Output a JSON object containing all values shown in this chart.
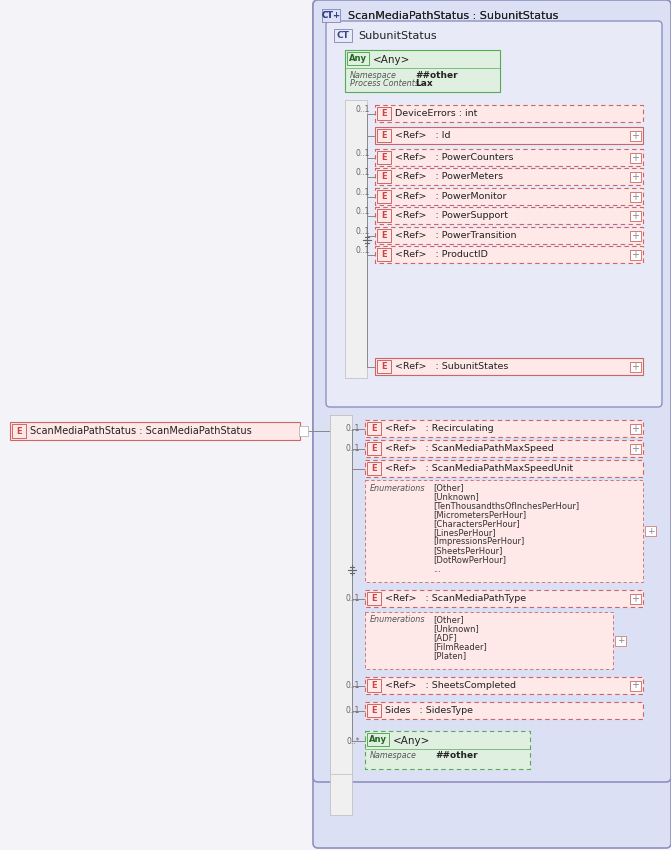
{
  "title": "ScanMediaPathStatus : SubunitStatus",
  "subunit_title": "SubunitStatus",
  "any_label": "<Any>",
  "any_ns": "##other",
  "any_process": "Lax",
  "main_element_label": "ScanMediaPathStatus : ScanMediaPathStatus",
  "outer_bg": "#dce0f5",
  "inner_bg": "#e8eaf8",
  "element_fill": "#ffe8e8",
  "element_border": "#cc6666",
  "any_fill": "#e0f0e0",
  "any_border": "#66aa66",
  "elements_inner": [
    {
      "label": "DeviceErrors : int",
      "has_plus": false,
      "occ": "0..1",
      "dashed": true
    },
    {
      "label": "<Ref>   : Id",
      "has_plus": true,
      "occ": "",
      "dashed": false
    },
    {
      "label": "<Ref>   : PowerCounters",
      "has_plus": true,
      "occ": "0..1",
      "dashed": true
    },
    {
      "label": "<Ref>   : PowerMeters",
      "has_plus": true,
      "occ": "0..1",
      "dashed": true
    },
    {
      "label": "<Ref>   : PowerMonitor",
      "has_plus": true,
      "occ": "0..1",
      "dashed": true
    },
    {
      "label": "<Ref>   : PowerSupport",
      "has_plus": true,
      "occ": "0..1",
      "dashed": true
    },
    {
      "label": "<Ref>   : PowerTransition",
      "has_plus": true,
      "occ": "0..1",
      "dashed": true
    },
    {
      "label": "<Ref>   : ProductID",
      "has_plus": true,
      "occ": "0..1",
      "dashed": true
    },
    {
      "label": "<Ref>   : SubunitStates",
      "has_plus": true,
      "occ": "",
      "dashed": false
    }
  ],
  "elements_outer": [
    {
      "label": "<Ref>   : Recirculating",
      "has_plus": true,
      "occ": "0..1",
      "dashed": true,
      "enums": null
    },
    {
      "label": "<Ref>   : ScanMediaPathMaxSpeed",
      "has_plus": true,
      "occ": "0..1",
      "dashed": true,
      "enums": null
    },
    {
      "label": "<Ref>   : ScanMediaPathMaxSpeedUnit",
      "has_plus": false,
      "occ": "",
      "dashed": true,
      "enums": [
        "[Other]",
        "[Unknown]",
        "[TenThousandthsOfInchesPerHour]",
        "[MicrometersPerHour]",
        "[CharactersPerHour]",
        "[LinesPerHour]",
        "[ImpressionsPerHour]",
        "[SheetsPerHour]",
        "[DotRowPerHour]",
        "..."
      ]
    },
    {
      "label": "<Ref>   : ScanMediaPathType",
      "has_plus": true,
      "occ": "0..1",
      "dashed": true,
      "enums": [
        "[Other]",
        "[Unknown]",
        "[ADF]",
        "[FilmReader]",
        "[Platen]"
      ]
    },
    {
      "label": "<Ref>   : SheetsCompleted",
      "has_plus": true,
      "occ": "0..1",
      "dashed": true,
      "enums": null
    },
    {
      "label": "Sides   : SidesType",
      "has_plus": false,
      "occ": "0..1",
      "dashed": true,
      "enums": null
    }
  ],
  "outer_any_label": "<Any>",
  "outer_any_ns": "##other",
  "outer_any_occ": "0..*"
}
